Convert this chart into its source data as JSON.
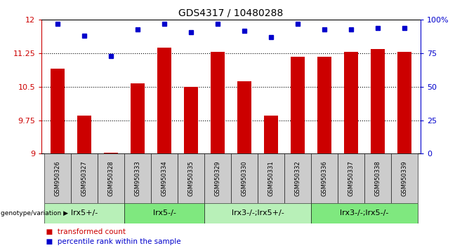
{
  "title": "GDS4317 / 10480288",
  "samples": [
    "GSM950326",
    "GSM950327",
    "GSM950328",
    "GSM950333",
    "GSM950334",
    "GSM950335",
    "GSM950329",
    "GSM950330",
    "GSM950331",
    "GSM950332",
    "GSM950336",
    "GSM950337",
    "GSM950338",
    "GSM950339"
  ],
  "bar_values": [
    10.9,
    9.85,
    9.02,
    10.58,
    11.38,
    10.5,
    11.28,
    10.62,
    9.85,
    11.18,
    11.18,
    11.28,
    11.35,
    11.29
  ],
  "percentile_values": [
    97,
    88,
    73,
    93,
    97,
    91,
    97,
    92,
    87,
    97,
    93,
    93,
    94,
    94
  ],
  "bar_color": "#cc0000",
  "dot_color": "#0000cc",
  "ylim_left": [
    9,
    12
  ],
  "ylim_right": [
    0,
    100
  ],
  "yticks_left": [
    9,
    9.75,
    10.5,
    11.25,
    12
  ],
  "yticks_right": [
    0,
    25,
    50,
    75,
    100
  ],
  "groups": [
    {
      "label": "lrx5+/-",
      "start": 0,
      "end": 3,
      "color": "#b8f0b8"
    },
    {
      "label": "lrx5-/-",
      "start": 3,
      "end": 6,
      "color": "#7fe87f"
    },
    {
      "label": "lrx3-/-;lrx5+/-",
      "start": 6,
      "end": 10,
      "color": "#b8f0b8"
    },
    {
      "label": "lrx3-/-;lrx5-/-",
      "start": 10,
      "end": 14,
      "color": "#7fe87f"
    }
  ],
  "xlabel_left": "genotype/variation",
  "legend_bar_label": "transformed count",
  "legend_dot_label": "percentile rank within the sample",
  "bar_width": 0.55,
  "title_fontsize": 10,
  "tick_fontsize": 8,
  "group_label_fontsize": 8,
  "sample_fontsize": 6
}
